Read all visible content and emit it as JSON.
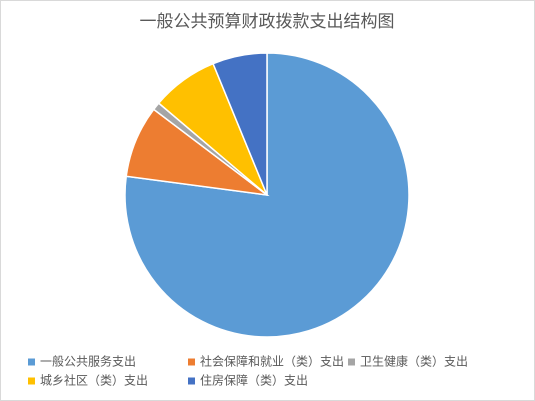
{
  "chart_data": {
    "type": "pie",
    "title": "一般公共预算财政拨款支出结构图",
    "categories": [
      "一般公共服务支出",
      "社会保障和就业（类）支出",
      "卫生健康（类）支出",
      "城乡社区（类）支出",
      "住房保障（类）支出"
    ],
    "values": [
      77.1,
      8.2,
      0.9,
      7.6,
      6.2
    ],
    "colors": [
      "#5b9bd5",
      "#ed7d31",
      "#a5a5a5",
      "#ffc000",
      "#4472c4"
    ],
    "legend": "bottom"
  }
}
